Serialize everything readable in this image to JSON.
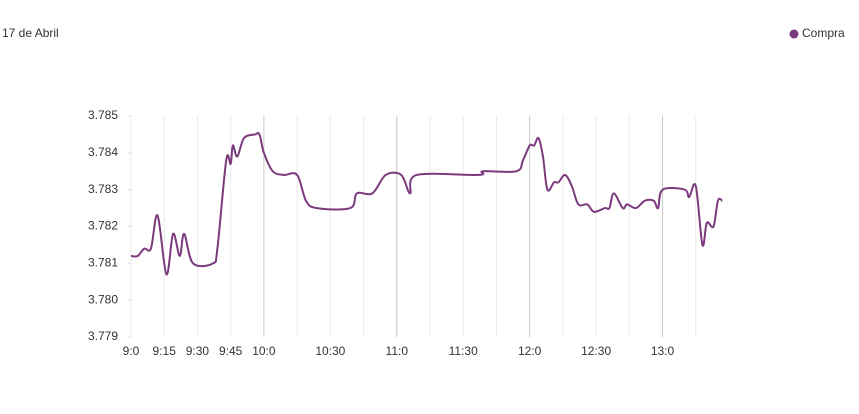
{
  "chart_data": {
    "type": "line",
    "title": "17 de Abril",
    "series": [
      {
        "name": "Compra",
        "color": "#7b3a7e",
        "x": [
          540,
          543,
          546,
          549,
          552,
          556,
          559,
          562,
          564,
          568,
          577,
          579,
          583,
          585,
          586,
          588,
          591,
          596,
          598,
          600,
          604,
          609,
          615,
          619,
          624,
          639,
          642,
          649,
          655,
          662,
          666,
          669,
          697,
          699,
          714,
          717,
          720,
          722,
          724,
          726,
          728,
          731,
          733,
          736,
          739,
          742,
          746,
          749,
          754,
          756,
          758,
          762,
          764,
          768,
          772,
          776,
          778,
          780,
          790,
          792,
          795,
          798,
          800,
          803,
          805,
          807
        ],
        "values": [
          3.7812,
          3.7812,
          3.7814,
          3.7814,
          3.7823,
          3.7807,
          3.7818,
          3.7812,
          3.7818,
          3.781,
          3.781,
          3.7814,
          3.7838,
          3.7837,
          3.7842,
          3.7839,
          3.7844,
          3.7845,
          3.7845,
          3.784,
          3.7835,
          3.7834,
          3.7834,
          3.7827,
          3.7825,
          3.7825,
          3.7829,
          3.7829,
          3.7834,
          3.7834,
          3.7829,
          3.7834,
          3.7834,
          3.7835,
          3.7835,
          3.7838,
          3.7842,
          3.7842,
          3.7844,
          3.7839,
          3.783,
          3.7832,
          3.7832,
          3.7834,
          3.7831,
          3.7826,
          3.7826,
          3.7824,
          3.7825,
          3.7825,
          3.7829,
          3.7825,
          3.7826,
          3.7825,
          3.7827,
          3.7827,
          3.7825,
          3.783,
          3.783,
          3.7828,
          3.7831,
          3.7815,
          3.7821,
          3.782,
          3.7827,
          3.7827
        ]
      }
    ],
    "xlim": [
      540,
      810
    ],
    "xticks": [
      {
        "value": 540,
        "label": "9:0"
      },
      {
        "value": 555,
        "label": "9:15"
      },
      {
        "value": 570,
        "label": "9:30"
      },
      {
        "value": 585,
        "label": "9:45"
      },
      {
        "value": 600,
        "label": "10:0"
      },
      {
        "value": 630,
        "label": "10:30"
      },
      {
        "value": 660,
        "label": "11:0"
      },
      {
        "value": 690,
        "label": "11:30"
      },
      {
        "value": 720,
        "label": "12:0"
      },
      {
        "value": 750,
        "label": "12:30"
      },
      {
        "value": 780,
        "label": "13:0"
      }
    ],
    "xminor_ticks": [
      615,
      645,
      675,
      705,
      735,
      765,
      795
    ],
    "ylim": [
      3.779,
      3.785
    ],
    "yticks": [
      3.785,
      3.784,
      3.783,
      3.782,
      3.781,
      {
        "value": 3.78,
        "label": "3.780"
      },
      3.779
    ],
    "legend": "top-right"
  }
}
